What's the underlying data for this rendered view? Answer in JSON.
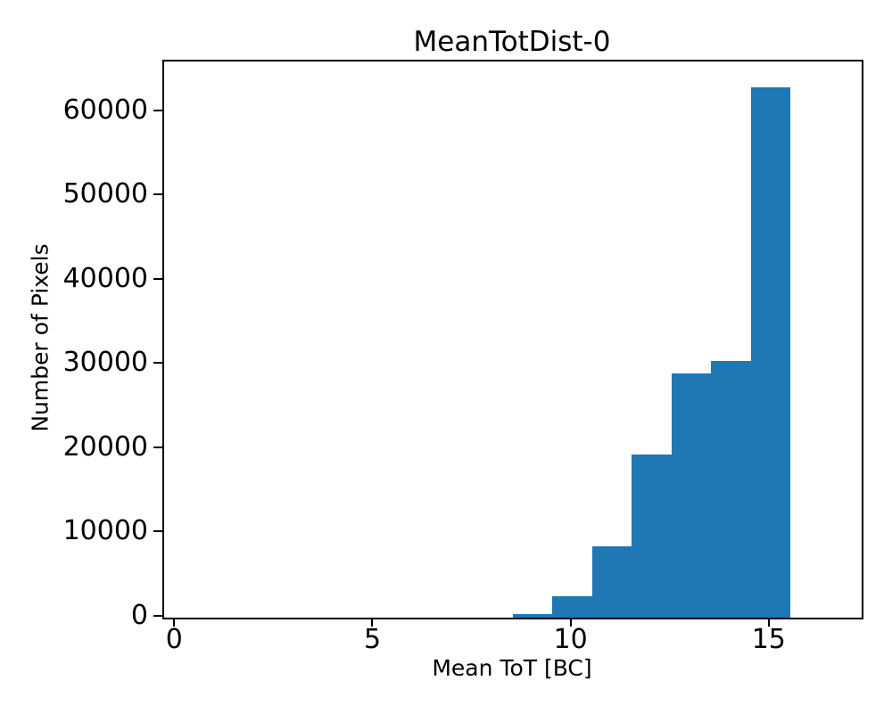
{
  "chart_data": {
    "type": "bar",
    "subtype": "histogram",
    "title": "MeanTotDist-0",
    "xlabel": "Mean ToT [BC]",
    "ylabel": "Number of Pixels",
    "bar_color": "#1f77b4",
    "axis_color": "#000000",
    "background_color": "#ffffff",
    "grid": false,
    "legend": false,
    "xlim": [
      -0.3,
      17.3
    ],
    "ylim": [
      0,
      66000
    ],
    "xticks": [
      0,
      5,
      10,
      15
    ],
    "yticks": [
      0,
      10000,
      20000,
      30000,
      40000,
      50000,
      60000
    ],
    "bin_width": 1,
    "bins": [
      {
        "x0": 8.5,
        "x1": 9.5,
        "center": 9,
        "count": 400
      },
      {
        "x0": 9.5,
        "x1": 10.5,
        "center": 10,
        "count": 2500
      },
      {
        "x0": 10.5,
        "x1": 11.5,
        "center": 11,
        "count": 8500
      },
      {
        "x0": 11.5,
        "x1": 12.5,
        "center": 12,
        "count": 19400
      },
      {
        "x0": 12.5,
        "x1": 13.5,
        "center": 13,
        "count": 29000
      },
      {
        "x0": 13.5,
        "x1": 14.5,
        "center": 14,
        "count": 30500
      },
      {
        "x0": 14.5,
        "x1": 15.5,
        "center": 15,
        "count": 62900
      }
    ]
  }
}
